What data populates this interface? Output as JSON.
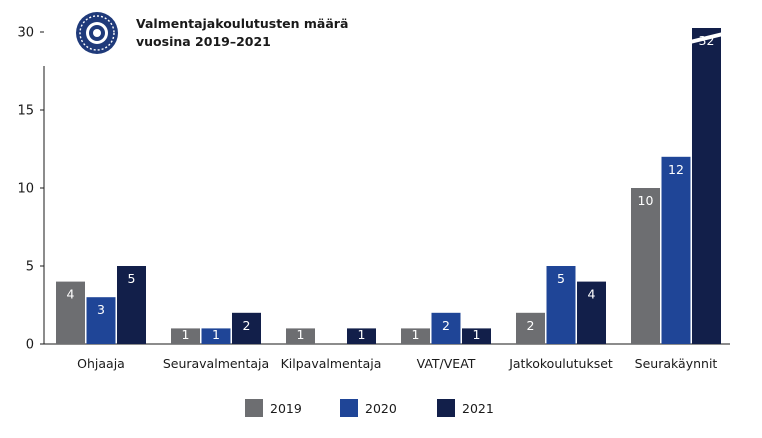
{
  "chart_data": {
    "type": "bar",
    "title_lines": [
      "Valmentajakoulutusten määrä",
      "vuosina 2019–2021"
    ],
    "categories": [
      "Ohjaaja",
      "Seuravalmentaja",
      "Kilpavalmentaja",
      "VAT/VEAT",
      "Jatkokoulutukset",
      "Seurakäynnit"
    ],
    "series": [
      {
        "name": "2019",
        "color": "#6d6e71",
        "values": [
          4,
          1,
          1,
          1,
          2,
          10
        ]
      },
      {
        "name": "2020",
        "color": "#1f4597",
        "values": [
          3,
          1,
          0,
          2,
          5,
          12
        ]
      },
      {
        "name": "2021",
        "color": "#121f4a",
        "values": [
          5,
          2,
          1,
          1,
          4,
          32
        ]
      }
    ],
    "y_ticks": [
      "0",
      "5",
      "10",
      "15",
      "30"
    ],
    "y_tick_values": [
      0,
      5,
      10,
      15,
      20
    ],
    "axis_break": {
      "above": 20,
      "top_value": 30
    },
    "grid": false,
    "legend_position": "bottom-center",
    "logo_icon": "circular-emblem-icon"
  }
}
